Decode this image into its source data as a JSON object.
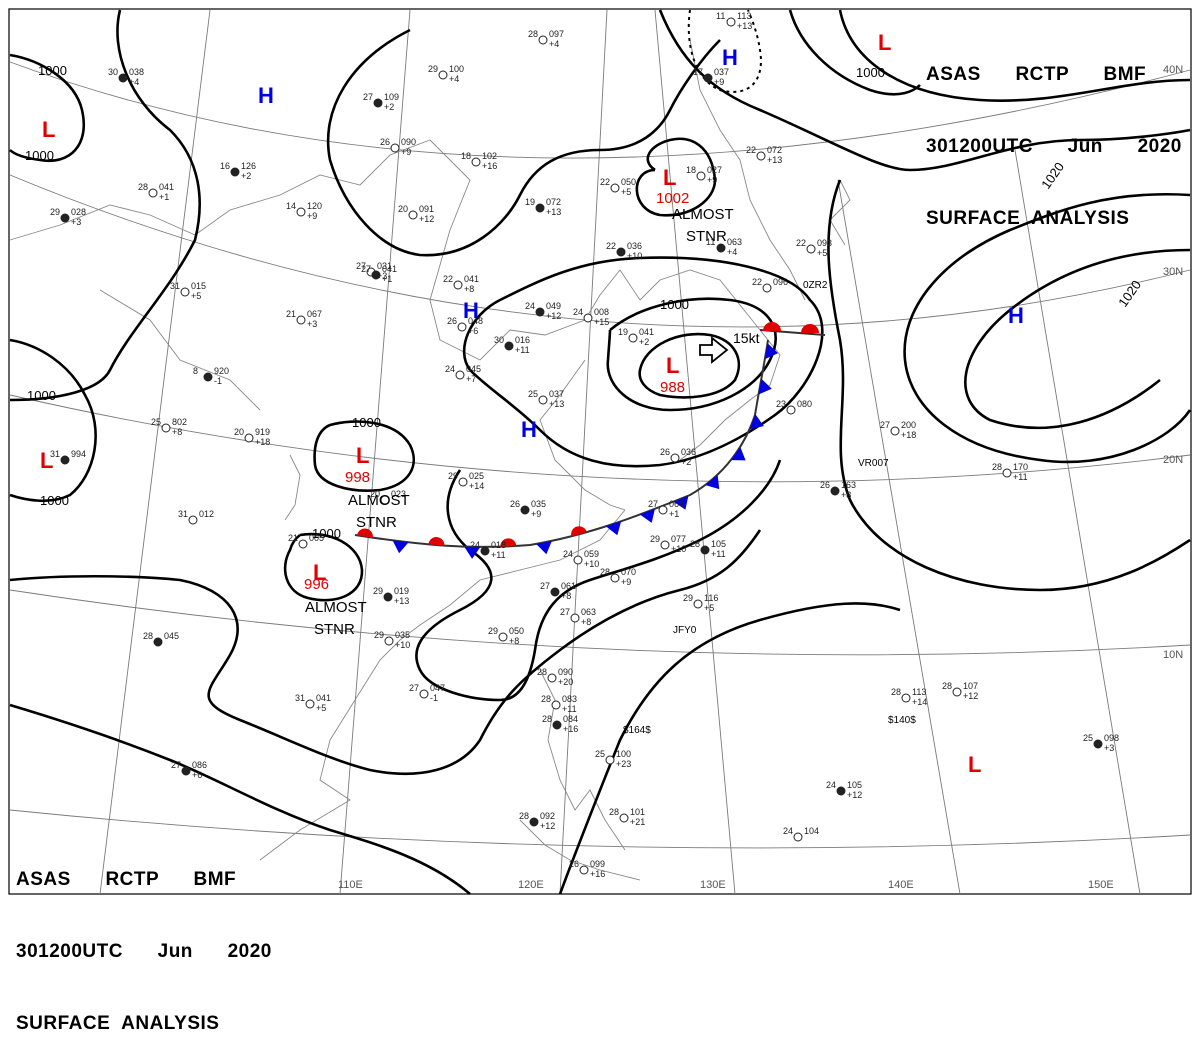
{
  "header": {
    "line1": "ASAS      RCTP      BMF",
    "line2": "301200UTC      Jun      2020",
    "line3": "SURFACE  ANALYSIS"
  },
  "footer": {
    "line1": "ASAS      RCTP      BMF",
    "line2": "301200UTC      Jun      2020",
    "line3": "SURFACE  ANALYSIS"
  },
  "lon_labels": [
    "110E",
    "120E",
    "130E",
    "140E",
    "150E"
  ],
  "lat_labels": [
    "40N",
    "30N",
    "20N",
    "10N"
  ],
  "isobar_labels": [
    "1000",
    "1000",
    "1000",
    "1000",
    "1000",
    "1000",
    "1000",
    "1000",
    "1020",
    "1020"
  ],
  "pressure_centers": [
    {
      "symbol": "L",
      "value": "",
      "color": "#e00000"
    },
    {
      "symbol": "L",
      "value": "",
      "color": "#e00000"
    },
    {
      "symbol": "L",
      "value": "1002",
      "color": "#e00000"
    },
    {
      "symbol": "L",
      "value": "988",
      "color": "#e00000"
    },
    {
      "symbol": "L",
      "value": "998",
      "color": "#e00000"
    },
    {
      "symbol": "L",
      "value": "996",
      "color": "#e00000"
    },
    {
      "symbol": "L",
      "value": "",
      "color": "#e00000"
    },
    {
      "symbol": "L",
      "value": "",
      "color": "#e00000"
    },
    {
      "symbol": "H",
      "value": "",
      "color": "#0000e0"
    },
    {
      "symbol": "H",
      "value": "",
      "color": "#0000e0"
    },
    {
      "symbol": "H",
      "value": "",
      "color": "#0000e0"
    },
    {
      "symbol": "H",
      "value": "",
      "color": "#0000e0"
    },
    {
      "symbol": "H",
      "value": "",
      "color": "#0000e0"
    }
  ],
  "annotations": [
    {
      "line1": "ALMOST",
      "line2": "STNR"
    },
    {
      "line1": "ALMOST",
      "line2": "STNR"
    },
    {
      "line1": "ALMOST",
      "line2": "STNR"
    }
  ],
  "motion_label": "15kt",
  "station_labels": [
    "$164$",
    "$140$",
    "VR007",
    "JFY0",
    "0ZR2"
  ],
  "stations": [
    {
      "t": "30",
      "p": "038",
      "d": "+4"
    },
    {
      "t": "29",
      "p": "100",
      "d": "+4"
    },
    {
      "t": "28",
      "p": "097",
      "d": "+4"
    },
    {
      "t": "27",
      "p": "109",
      "d": "+2"
    },
    {
      "t": "26",
      "p": "090",
      "d": "+9"
    },
    {
      "t": "18",
      "p": "102",
      "d": "+16"
    },
    {
      "t": "16",
      "p": "126",
      "d": "+2"
    },
    {
      "t": "14",
      "p": "120",
      "d": "+9"
    },
    {
      "t": "20",
      "p": "091",
      "d": "+12"
    },
    {
      "t": "19",
      "p": "072",
      "d": "+13"
    },
    {
      "t": "22",
      "p": "050",
      "d": "+5"
    },
    {
      "t": "28",
      "p": "041",
      "d": "+1"
    },
    {
      "t": "29",
      "p": "028",
      "d": "+3"
    },
    {
      "t": "27",
      "p": "031",
      "d": "+3"
    },
    {
      "t": "22",
      "p": "041",
      "d": "+8"
    },
    {
      "t": "22",
      "p": "036",
      "d": "+10"
    },
    {
      "t": "31",
      "p": "015",
      "d": "+5"
    },
    {
      "t": "21",
      "p": "067",
      "d": "+3"
    },
    {
      "t": "24",
      "p": "049",
      "d": "+12"
    },
    {
      "t": "24",
      "p": "008",
      "d": "+15"
    },
    {
      "t": "26",
      "p": "048",
      "d": "+6"
    },
    {
      "t": "30",
      "p": "016",
      "d": "+11"
    },
    {
      "t": "24",
      "p": "045",
      "d": "+7"
    },
    {
      "t": "25",
      "p": "037",
      "d": "+13"
    },
    {
      "t": "8",
      "p": "920",
      "d": "-1"
    },
    {
      "t": "25",
      "p": "802",
      "d": "+8"
    },
    {
      "t": "20",
      "p": "919",
      "d": "+18"
    },
    {
      "t": "31",
      "p": "994",
      "d": ""
    },
    {
      "t": "31",
      "p": "012",
      "d": ""
    },
    {
      "t": "29",
      "p": "025",
      "d": "+14"
    },
    {
      "t": "26",
      "p": "035",
      "d": "+9"
    },
    {
      "t": "27",
      "p": "064",
      "d": "+1"
    },
    {
      "t": "29",
      "p": "077",
      "d": "+10"
    },
    {
      "t": "28",
      "p": "105",
      "d": "+11"
    },
    {
      "t": "24",
      "p": "059",
      "d": "+10"
    },
    {
      "t": "28",
      "p": "070",
      "d": "+9"
    },
    {
      "t": "27",
      "p": "061",
      "d": "+8"
    },
    {
      "t": "27",
      "p": "063",
      "d": "+8"
    },
    {
      "t": "29",
      "p": "116",
      "d": "+5"
    },
    {
      "t": "29",
      "p": "019",
      "d": "+13"
    },
    {
      "t": "29",
      "p": "035",
      "d": "+10"
    },
    {
      "t": "29",
      "p": "050",
      "d": "+8"
    },
    {
      "t": "28",
      "p": "045",
      "d": ""
    },
    {
      "t": "27",
      "p": "047",
      "d": "-1"
    },
    {
      "t": "31",
      "p": "041",
      "d": "+5"
    },
    {
      "t": "27",
      "p": "086",
      "d": "+6"
    },
    {
      "t": "28",
      "p": "090",
      "d": "+20"
    },
    {
      "t": "28",
      "p": "083",
      "d": "+11"
    },
    {
      "t": "28",
      "p": "084",
      "d": "+16"
    },
    {
      "t": "25",
      "p": "100",
      "d": "+23"
    },
    {
      "t": "28",
      "p": "101",
      "d": "+21"
    },
    {
      "t": "28",
      "p": "092",
      "d": "+12"
    },
    {
      "t": "26",
      "p": "099",
      "d": "+16"
    },
    {
      "t": "24",
      "p": "104",
      "d": ""
    },
    {
      "t": "24",
      "p": "105",
      "d": "+12"
    },
    {
      "t": "28",
      "p": "113",
      "d": "+14"
    },
    {
      "t": "28",
      "p": "107",
      "d": "+12"
    },
    {
      "t": "25",
      "p": "098",
      "d": "+3"
    },
    {
      "t": "28",
      "p": "170",
      "d": "+11"
    },
    {
      "t": "27",
      "p": "200",
      "d": "+18"
    },
    {
      "t": "26",
      "p": "163",
      "d": "+8"
    },
    {
      "t": "22",
      "p": "093",
      "d": "+5"
    },
    {
      "t": "22",
      "p": "072",
      "d": "+13"
    },
    {
      "t": "11",
      "p": "063",
      "d": "+4"
    },
    {
      "t": "18",
      "p": "027",
      "d": "+9"
    },
    {
      "t": "11",
      "p": "113",
      "d": "+13"
    },
    {
      "t": "17",
      "p": "037",
      "d": "+9"
    },
    {
      "t": "22",
      "p": "096",
      "d": ""
    },
    {
      "t": "23",
      "p": "080",
      "d": ""
    },
    {
      "t": "27",
      "p": "041",
      "d": "+1"
    },
    {
      "t": "19",
      "p": "041",
      "d": "+2"
    },
    {
      "t": "26",
      "p": "036",
      "d": "+2"
    },
    {
      "t": "24",
      "p": "018",
      "d": "+11"
    },
    {
      "t": "21",
      "p": "005",
      "d": ""
    },
    {
      "t": "20",
      "p": "023",
      "d": ""
    }
  ],
  "colors": {
    "low": "#e00000",
    "high": "#0000e0",
    "warm_front": "#e00000",
    "cold_front": "#0000e0",
    "isobar": "#000000",
    "grid": "#7a7a7a",
    "coast": "#888888"
  }
}
